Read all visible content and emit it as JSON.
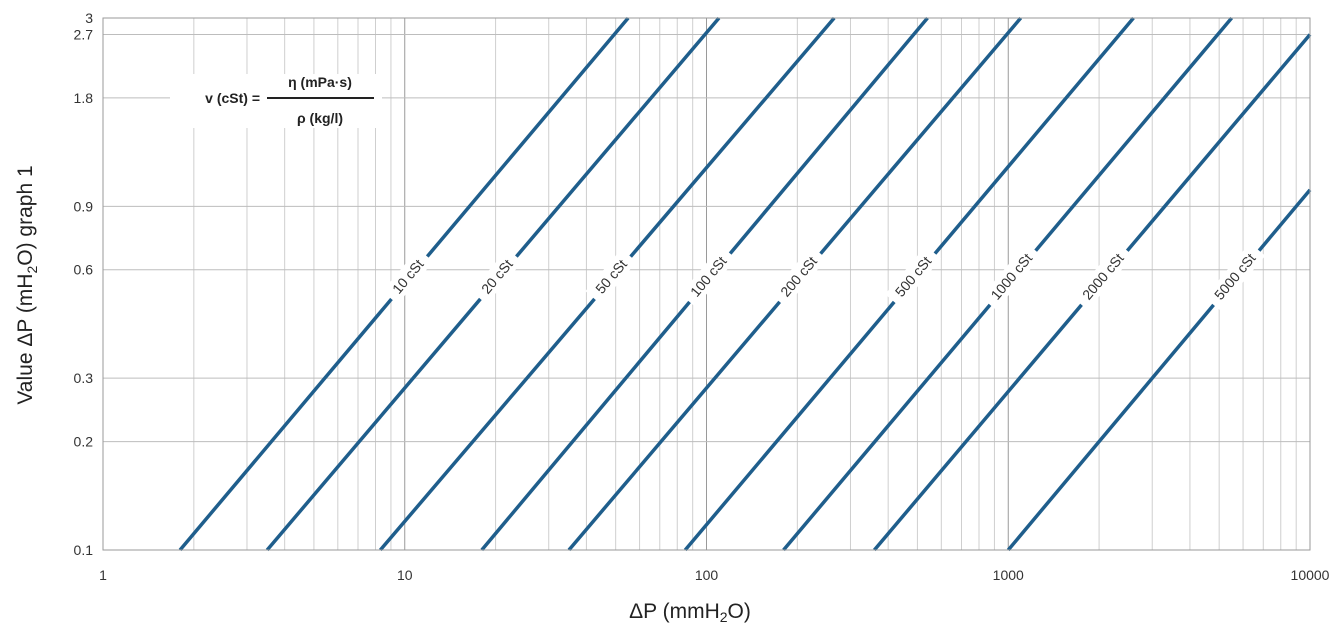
{
  "chart_data": {
    "type": "line",
    "xscale": "log",
    "yscale": "log",
    "xlim": [
      1,
      10000
    ],
    "ylim": [
      0.1,
      3
    ],
    "grid": true,
    "xlabel": {
      "pre": "ΔP (mmH",
      "sub": "2",
      "post": "O)"
    },
    "ylabel": {
      "pre": "Value ΔP (mH",
      "sub": "2",
      "post": "O) graph 1"
    },
    "xticks": [
      1,
      10,
      100,
      1000,
      10000
    ],
    "xtick_labels": [
      "1",
      "10",
      "100",
      "1000",
      "10000"
    ],
    "yticks": [
      0.1,
      0.2,
      0.3,
      0.6,
      0.9,
      1.8,
      2.7,
      3
    ],
    "ytick_labels": [
      "0.1",
      "0.2",
      "0.3",
      "0.6",
      "0.9",
      "1.8",
      "2.7",
      "3"
    ],
    "formula": {
      "lhs": "v (cSt) =",
      "numerator": "η (mPa·s)",
      "denominator": "ρ (kg/l)"
    },
    "line_color": "#1f5e8c",
    "series": [
      {
        "name": "10 cSt",
        "x": [
          1.8,
          55
        ],
        "y": [
          0.1,
          3
        ],
        "label_at": 0.57
      },
      {
        "name": "20 cSt",
        "x": [
          3.5,
          110
        ],
        "y": [
          0.1,
          3
        ],
        "label_at": 0.57
      },
      {
        "name": "50 cSt",
        "x": [
          8.3,
          265
        ],
        "y": [
          0.1,
          3
        ],
        "label_at": 0.57
      },
      {
        "name": "100 cSt",
        "x": [
          18,
          540
        ],
        "y": [
          0.1,
          3
        ],
        "label_at": 0.57
      },
      {
        "name": "200 cSt",
        "x": [
          35,
          1100
        ],
        "y": [
          0.1,
          3
        ],
        "label_at": 0.57
      },
      {
        "name": "500 cSt",
        "x": [
          85,
          2600
        ],
        "y": [
          0.1,
          3
        ],
        "label_at": 0.57
      },
      {
        "name": "1000 cSt",
        "x": [
          180,
          5500
        ],
        "y": [
          0.1,
          3
        ],
        "label_at": 0.57
      },
      {
        "name": "2000 cSt",
        "x": [
          360,
          10000
        ],
        "y": [
          0.1,
          2.7
        ],
        "label_at": 0.57
      },
      {
        "name": "5000 cSt",
        "x": [
          1000,
          10000
        ],
        "y": [
          0.1,
          1.0
        ],
        "label_at": 0.57
      }
    ]
  }
}
